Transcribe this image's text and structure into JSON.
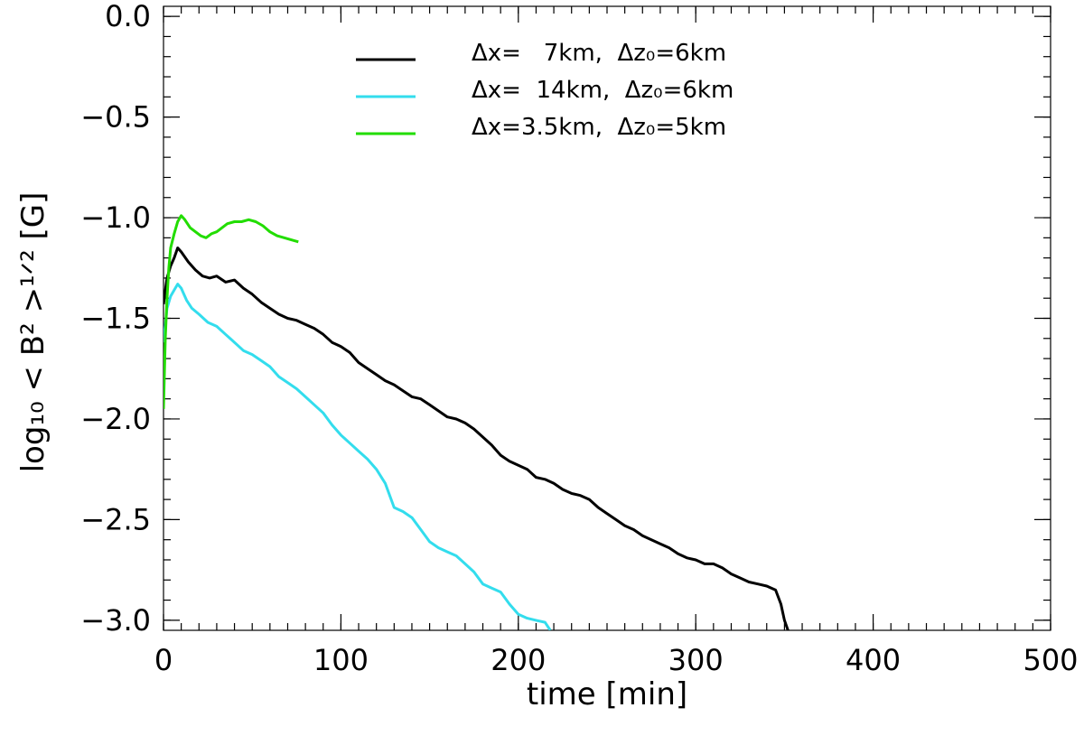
{
  "chart_data": {
    "type": "line",
    "xlabel": "time [min]",
    "ylabel": "log₁₀ < B² >¹ᐟ² [G]",
    "xlim": [
      0,
      500
    ],
    "ylim": [
      -3.05,
      0.05
    ],
    "x_ticks": [
      0,
      100,
      200,
      300,
      400,
      500
    ],
    "y_ticks": [
      -3.0,
      -2.5,
      -2.0,
      -1.5,
      -1.0,
      -0.5,
      0.0
    ],
    "x_tick_labels": [
      "0",
      "100",
      "200",
      "300",
      "400",
      "500"
    ],
    "y_tick_labels": [
      "−3.0",
      "−2.5",
      "−2.0",
      "−1.5",
      "−1.0",
      "−0.5",
      "0.0"
    ],
    "grid": false,
    "legend_position": "top-center",
    "series": [
      {
        "name": "Δx=   7km,  Δz₀=6km",
        "color": "#000000",
        "points": [
          [
            0,
            -1.43
          ],
          [
            2,
            -1.3
          ],
          [
            4,
            -1.24
          ],
          [
            6,
            -1.2
          ],
          [
            8,
            -1.15
          ],
          [
            10,
            -1.17
          ],
          [
            14,
            -1.22
          ],
          [
            18,
            -1.26
          ],
          [
            22,
            -1.29
          ],
          [
            26,
            -1.3
          ],
          [
            30,
            -1.29
          ],
          [
            35,
            -1.32
          ],
          [
            40,
            -1.31
          ],
          [
            45,
            -1.35
          ],
          [
            50,
            -1.38
          ],
          [
            55,
            -1.42
          ],
          [
            60,
            -1.45
          ],
          [
            65,
            -1.48
          ],
          [
            70,
            -1.5
          ],
          [
            75,
            -1.51
          ],
          [
            80,
            -1.53
          ],
          [
            85,
            -1.55
          ],
          [
            90,
            -1.58
          ],
          [
            95,
            -1.62
          ],
          [
            100,
            -1.64
          ],
          [
            105,
            -1.67
          ],
          [
            110,
            -1.72
          ],
          [
            115,
            -1.75
          ],
          [
            120,
            -1.78
          ],
          [
            125,
            -1.81
          ],
          [
            130,
            -1.83
          ],
          [
            135,
            -1.86
          ],
          [
            140,
            -1.89
          ],
          [
            145,
            -1.9
          ],
          [
            150,
            -1.93
          ],
          [
            155,
            -1.96
          ],
          [
            160,
            -1.99
          ],
          [
            165,
            -2.0
          ],
          [
            170,
            -2.02
          ],
          [
            175,
            -2.05
          ],
          [
            180,
            -2.09
          ],
          [
            185,
            -2.13
          ],
          [
            190,
            -2.18
          ],
          [
            195,
            -2.21
          ],
          [
            200,
            -2.23
          ],
          [
            205,
            -2.25
          ],
          [
            210,
            -2.29
          ],
          [
            215,
            -2.3
          ],
          [
            220,
            -2.32
          ],
          [
            225,
            -2.35
          ],
          [
            230,
            -2.37
          ],
          [
            235,
            -2.38
          ],
          [
            240,
            -2.4
          ],
          [
            245,
            -2.44
          ],
          [
            250,
            -2.47
          ],
          [
            255,
            -2.5
          ],
          [
            260,
            -2.53
          ],
          [
            265,
            -2.55
          ],
          [
            270,
            -2.58
          ],
          [
            275,
            -2.6
          ],
          [
            280,
            -2.62
          ],
          [
            285,
            -2.64
          ],
          [
            290,
            -2.67
          ],
          [
            295,
            -2.69
          ],
          [
            300,
            -2.7
          ],
          [
            305,
            -2.72
          ],
          [
            310,
            -2.72
          ],
          [
            315,
            -2.74
          ],
          [
            320,
            -2.77
          ],
          [
            325,
            -2.79
          ],
          [
            330,
            -2.81
          ],
          [
            335,
            -2.82
          ],
          [
            340,
            -2.83
          ],
          [
            345,
            -2.85
          ],
          [
            348,
            -2.92
          ],
          [
            350,
            -3.0
          ],
          [
            352,
            -3.05
          ]
        ]
      },
      {
        "name": "Δx=  14km,  Δz₀=6km",
        "color": "#33dded",
        "points": [
          [
            0,
            -1.62
          ],
          [
            2,
            -1.45
          ],
          [
            4,
            -1.39
          ],
          [
            6,
            -1.36
          ],
          [
            8,
            -1.33
          ],
          [
            10,
            -1.35
          ],
          [
            13,
            -1.41
          ],
          [
            16,
            -1.45
          ],
          [
            20,
            -1.48
          ],
          [
            25,
            -1.52
          ],
          [
            30,
            -1.54
          ],
          [
            35,
            -1.58
          ],
          [
            40,
            -1.62
          ],
          [
            45,
            -1.66
          ],
          [
            50,
            -1.68
          ],
          [
            55,
            -1.71
          ],
          [
            60,
            -1.74
          ],
          [
            65,
            -1.79
          ],
          [
            70,
            -1.82
          ],
          [
            75,
            -1.85
          ],
          [
            80,
            -1.89
          ],
          [
            85,
            -1.93
          ],
          [
            90,
            -1.97
          ],
          [
            95,
            -2.03
          ],
          [
            100,
            -2.08
          ],
          [
            105,
            -2.12
          ],
          [
            110,
            -2.16
          ],
          [
            115,
            -2.2
          ],
          [
            120,
            -2.25
          ],
          [
            125,
            -2.32
          ],
          [
            130,
            -2.44
          ],
          [
            135,
            -2.46
          ],
          [
            140,
            -2.49
          ],
          [
            145,
            -2.55
          ],
          [
            150,
            -2.61
          ],
          [
            155,
            -2.64
          ],
          [
            160,
            -2.66
          ],
          [
            165,
            -2.68
          ],
          [
            170,
            -2.72
          ],
          [
            175,
            -2.76
          ],
          [
            180,
            -2.82
          ],
          [
            185,
            -2.84
          ],
          [
            190,
            -2.86
          ],
          [
            195,
            -2.92
          ],
          [
            200,
            -2.97
          ],
          [
            205,
            -2.99
          ],
          [
            210,
            -3.0
          ],
          [
            215,
            -3.01
          ],
          [
            218,
            -3.05
          ]
        ]
      },
      {
        "name": "Δx=3.5km,  Δz₀=5km",
        "color": "#22dd00",
        "points": [
          [
            0,
            -1.95
          ],
          [
            1,
            -1.6
          ],
          [
            2,
            -1.4
          ],
          [
            3,
            -1.25
          ],
          [
            4,
            -1.15
          ],
          [
            6,
            -1.08
          ],
          [
            8,
            -1.02
          ],
          [
            10,
            -0.99
          ],
          [
            12,
            -1.01
          ],
          [
            15,
            -1.05
          ],
          [
            18,
            -1.07
          ],
          [
            21,
            -1.09
          ],
          [
            24,
            -1.1
          ],
          [
            27,
            -1.08
          ],
          [
            30,
            -1.07
          ],
          [
            33,
            -1.05
          ],
          [
            36,
            -1.03
          ],
          [
            40,
            -1.02
          ],
          [
            44,
            -1.02
          ],
          [
            48,
            -1.01
          ],
          [
            52,
            -1.02
          ],
          [
            56,
            -1.04
          ],
          [
            60,
            -1.07
          ],
          [
            64,
            -1.09
          ],
          [
            68,
            -1.1
          ],
          [
            72,
            -1.11
          ],
          [
            76,
            -1.12
          ]
        ]
      }
    ]
  }
}
